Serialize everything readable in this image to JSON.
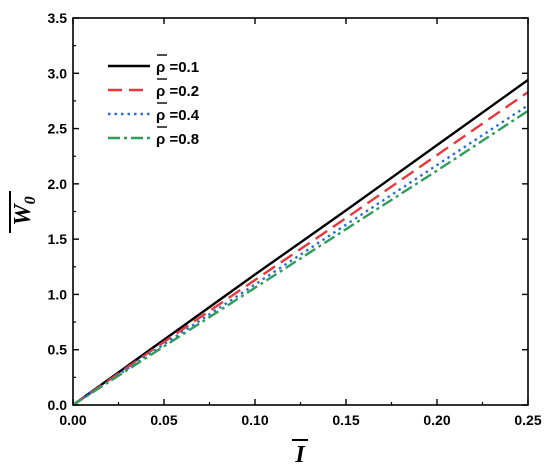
{
  "chart_data": {
    "type": "line",
    "title": "",
    "xlabel": "I",
    "ylabel": "W",
    "ylabel_subscript": "0",
    "xlim": [
      0.0,
      0.25
    ],
    "ylim": [
      0.0,
      3.5
    ],
    "x_ticks": [
      "0.00",
      "0.05",
      "0.10",
      "0.15",
      "0.20",
      "0.25"
    ],
    "y_ticks": [
      "0.0",
      "0.5",
      "1.0",
      "1.5",
      "2.0",
      "2.5",
      "3.0",
      "3.5"
    ],
    "grid": false,
    "legend_position": "top-left",
    "series": [
      {
        "name": "ρ =0.1",
        "color": "#000000",
        "style": "solid",
        "x": [
          0.0,
          0.05,
          0.1,
          0.15,
          0.2,
          0.25
        ],
        "y": [
          0.0,
          0.59,
          1.18,
          1.76,
          2.35,
          2.94
        ]
      },
      {
        "name": "ρ =0.2",
        "color": "#e8383d",
        "style": "dashed",
        "x": [
          0.0,
          0.05,
          0.1,
          0.15,
          0.2,
          0.25
        ],
        "y": [
          0.0,
          0.57,
          1.13,
          1.69,
          2.26,
          2.83
        ]
      },
      {
        "name": "ρ =0.4",
        "color": "#2a6fd6",
        "style": "dotted",
        "x": [
          0.0,
          0.05,
          0.1,
          0.15,
          0.2,
          0.25
        ],
        "y": [
          0.0,
          0.55,
          1.09,
          1.63,
          2.17,
          2.71
        ]
      },
      {
        "name": "ρ =0.8",
        "color": "#2e9e5a",
        "style": "dashdot",
        "x": [
          0.0,
          0.05,
          0.1,
          0.15,
          0.2,
          0.25
        ],
        "y": [
          0.0,
          0.53,
          1.06,
          1.59,
          2.12,
          2.66
        ]
      }
    ]
  }
}
